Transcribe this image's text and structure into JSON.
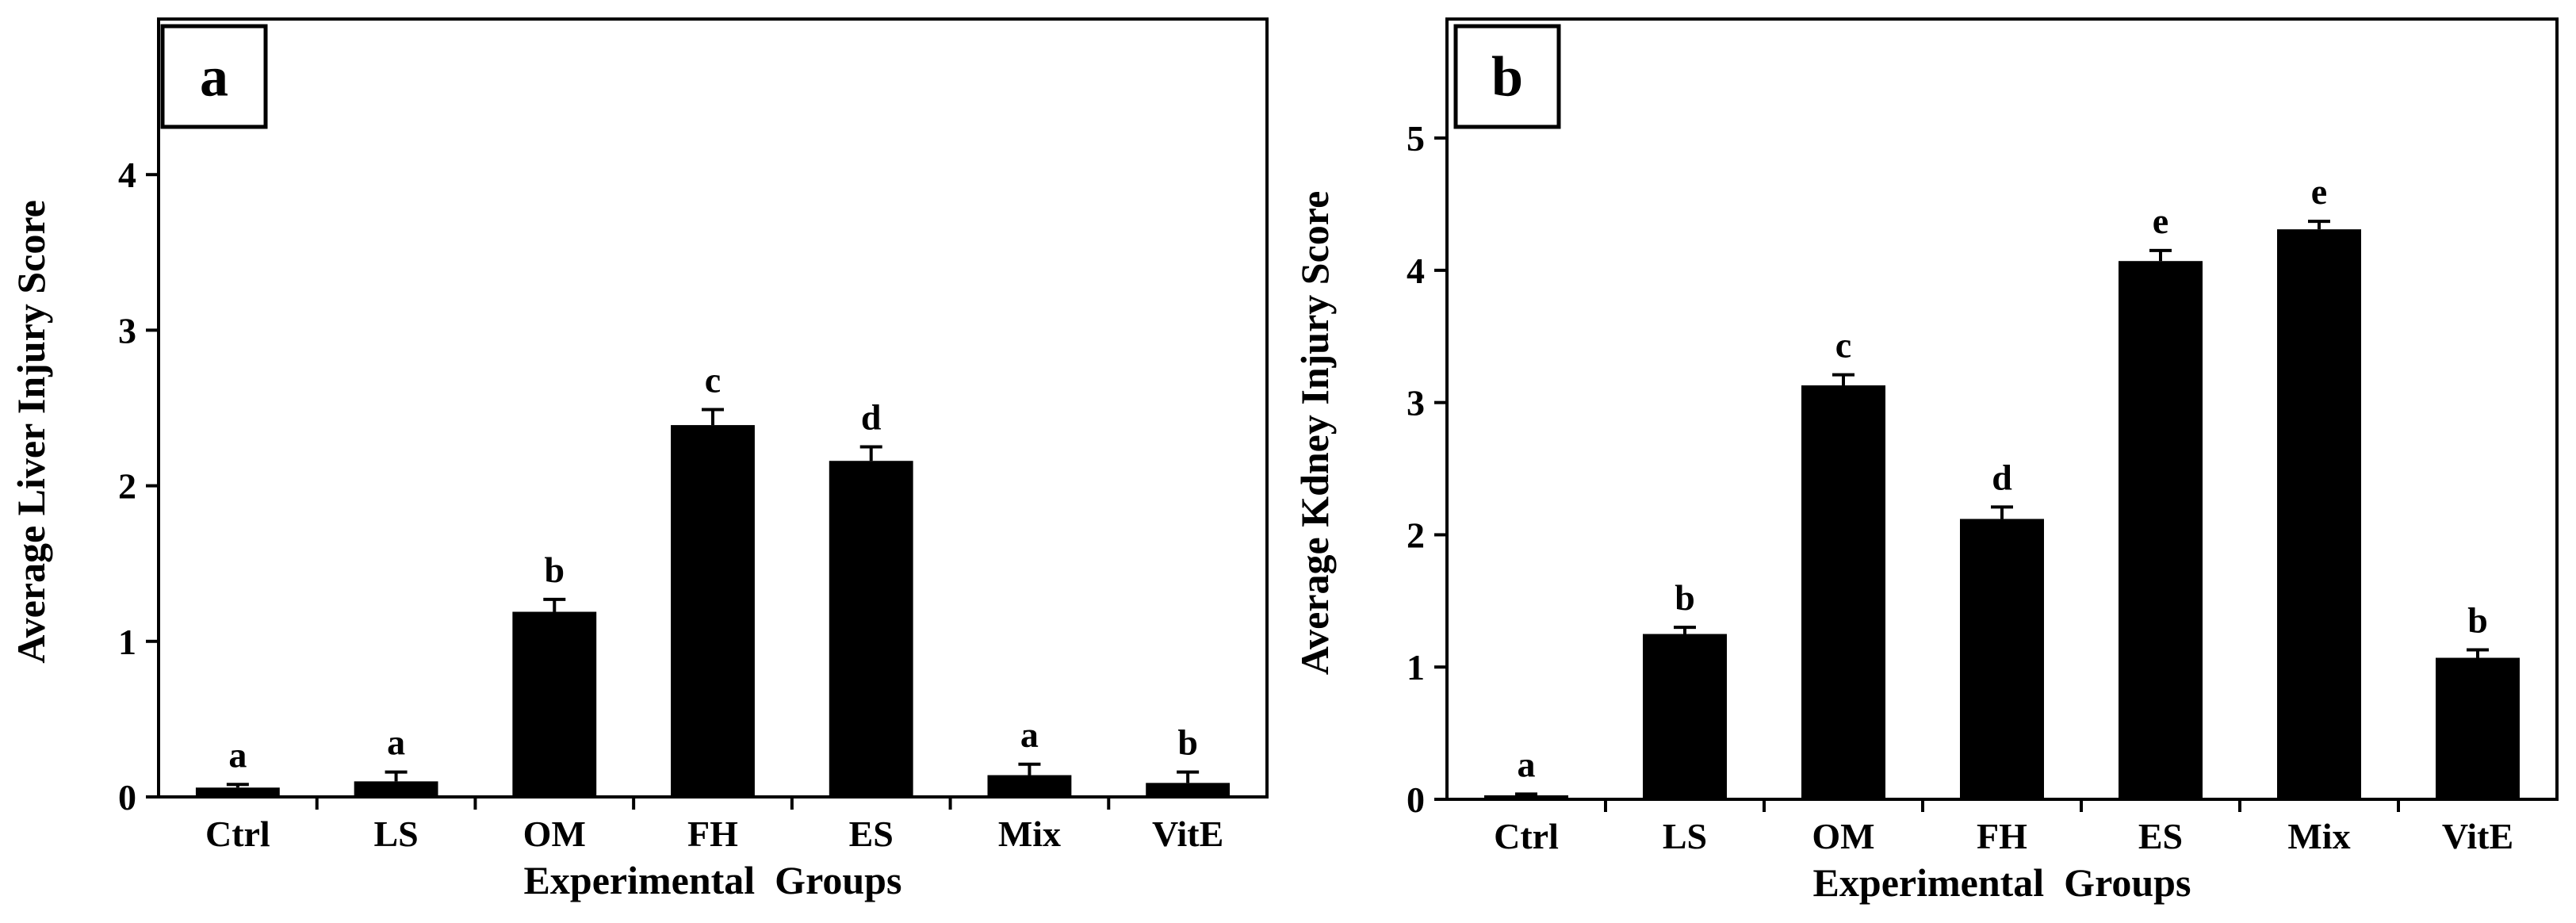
{
  "chart_data": [
    {
      "type": "bar",
      "panel": "a",
      "title": "",
      "xlabel": "Experimental  Groups",
      "ylabel": "Average Liver Injury Score",
      "categories": [
        "Ctrl",
        "LS",
        "OM",
        "FH",
        "ES",
        "Mix",
        "VitE"
      ],
      "values": [
        0.06,
        0.1,
        1.19,
        2.39,
        2.16,
        0.14,
        0.09
      ],
      "errors": [
        0.02,
        0.06,
        0.08,
        0.1,
        0.09,
        0.07,
        0.07
      ],
      "significance": [
        "a",
        "a",
        "b",
        "c",
        "d",
        "a",
        "b"
      ],
      "ylim": [
        0,
        5
      ],
      "yticks": [
        0,
        1,
        2,
        3,
        4
      ],
      "ytick_labels": [
        "0",
        "1",
        "2",
        "3",
        "4"
      ],
      "bar_color": "#000000"
    },
    {
      "type": "bar",
      "panel": "b",
      "title": "",
      "xlabel": "Experimental  Groups",
      "ylabel": "Average Kdney Injury Score",
      "categories": [
        "Ctrl",
        "LS",
        "OM",
        "FH",
        "ES",
        "Mix",
        "VitE"
      ],
      "values": [
        0.03,
        1.25,
        3.13,
        2.12,
        4.07,
        4.31,
        1.07
      ],
      "errors": [
        0.01,
        0.05,
        0.08,
        0.09,
        0.08,
        0.06,
        0.06
      ],
      "significance": [
        "a",
        "b",
        "c",
        "d",
        "e",
        "e",
        "b"
      ],
      "ylim": [
        0,
        5.9
      ],
      "yticks": [
        0,
        1,
        2,
        3,
        4,
        5
      ],
      "ytick_labels": [
        "0",
        "1",
        "2",
        "3",
        "4",
        "5"
      ],
      "bar_color": "#000000"
    }
  ]
}
